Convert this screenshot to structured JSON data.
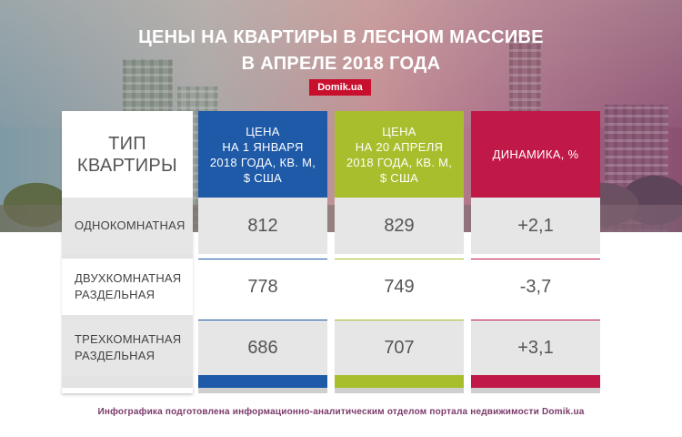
{
  "title_line1": "ЦЕНЫ НА КВАРТИРЫ В ЛЕСНОМ МАССИВЕ",
  "title_line2": "В АПРЕЛЕ 2018 ГОДА",
  "logo": "Domik.ua",
  "colors": {
    "blue": "#1e5aa8",
    "green": "#a8be2c",
    "red": "#c01947"
  },
  "chart_data": {
    "type": "table",
    "title": "ЦЕНЫ НА КВАРТИРЫ В ЛЕСНОМ МАССИВЕ В АПРЕЛЕ 2018 ГОДА",
    "columns": [
      "ТИП КВАРТИРЫ",
      "ЦЕНА НА 1 ЯНВАРЯ 2018 ГОДА, КВ. М, $ США",
      "ЦЕНА НА 20 АПРЕЛЯ 2018 ГОДА, КВ. М, $ США",
      "ДИНАМИКА, %"
    ],
    "rows": [
      {
        "type": "ОДНОКОМНАТНАЯ",
        "jan": "812",
        "apr": "829",
        "dyn": "+2,1"
      },
      {
        "type": "ДВУХКОМНАТНАЯ РАЗДЕЛЬНАЯ",
        "jan": "778",
        "apr": "749",
        "dyn": "-3,7"
      },
      {
        "type": "ТРЕХКОМНАТНАЯ РАЗДЕЛЬНАЯ",
        "jan": "686",
        "apr": "707",
        "dyn": "+3,1"
      }
    ]
  },
  "headers": {
    "type_l1": "ТИП",
    "type_l2": "КВАРТИРЫ",
    "jan_l1": "ЦЕНА",
    "jan_l2": "НА 1 ЯНВАРЯ",
    "jan_l3": "2018 ГОДА, КВ. М,",
    "jan_l4": "$ США",
    "apr_l1": "ЦЕНА",
    "apr_l2": "НА 20 АПРЕЛЯ",
    "apr_l3": "2018 ГОДА, КВ. М,",
    "apr_l4": "$ США",
    "dyn": "ДИНАМИКА, %"
  },
  "row_labels": {
    "r1_l1": "ОДНОКОМНАТНАЯ",
    "r2_l1": "ДВУХКОМНАТНАЯ",
    "r2_l2": "РАЗДЕЛЬНАЯ",
    "r3_l1": "ТРЕХКОМНАТНАЯ",
    "r3_l2": "РАЗДЕЛЬНАЯ"
  },
  "footer": "Инфографика подготовлена информационно-аналитическим отделом портала недвижимости Domik.ua"
}
